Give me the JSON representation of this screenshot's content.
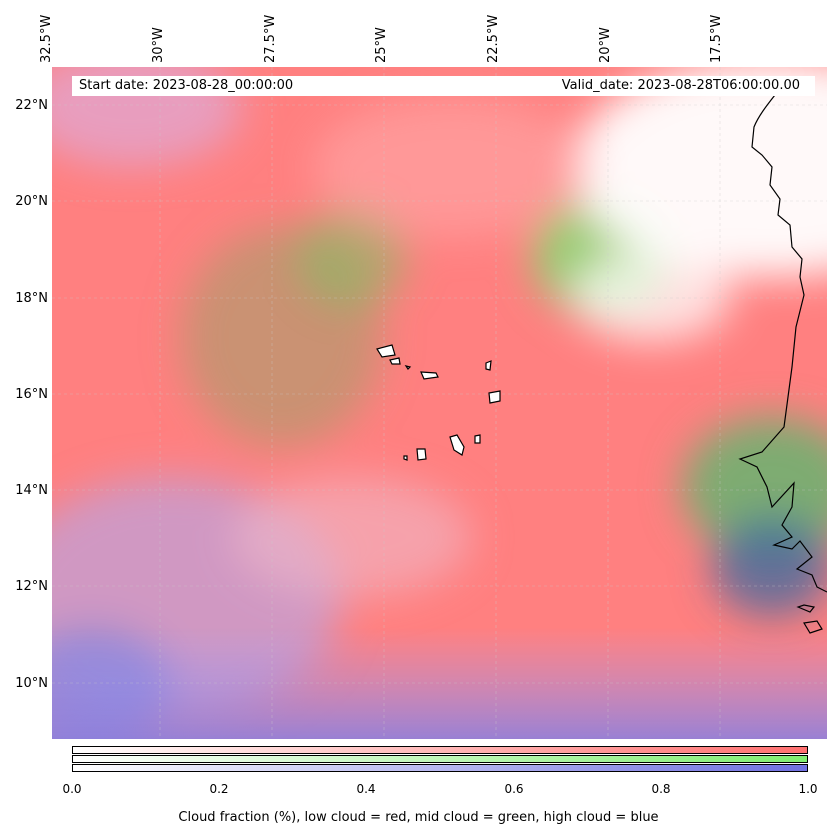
{
  "header": {
    "start_date": "Start date: 2023-08-28_00:00:00",
    "valid_date": "Valid_date: 2023-08-28T06:00:00.00"
  },
  "axes": {
    "longitude_labels": [
      "32.5°W",
      "30°W",
      "27.5°W",
      "25°W",
      "22.5°W",
      "20°W",
      "17.5°W"
    ],
    "latitude_labels": [
      "22°N",
      "20°N",
      "18°N",
      "16°N",
      "14°N",
      "12°N",
      "10°N"
    ]
  },
  "colorbar": {
    "ticks": [
      "0.0",
      "0.2",
      "0.4",
      "0.6",
      "0.8",
      "1.0"
    ],
    "label": "Cloud fraction (%), low cloud = red, mid cloud = green, high cloud = blue",
    "low_color": "#ff7070",
    "mid_color": "#80ee70",
    "high_color": "#7070e0"
  },
  "map": {
    "ocean_base_color": "#ff8080",
    "coastline_color": "#000000"
  }
}
